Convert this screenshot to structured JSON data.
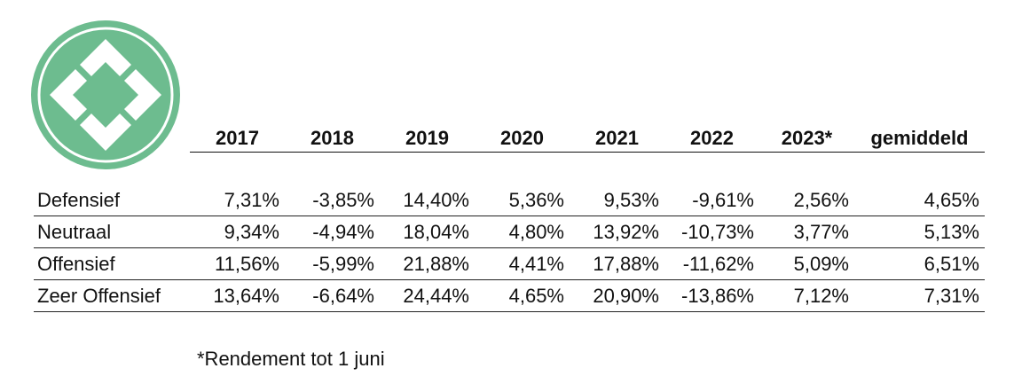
{
  "brand": {
    "logo_icon": "diamond-cross-logo-icon",
    "colors": {
      "logo_green": "#6dbc8f",
      "logo_ring": "#ffffff"
    }
  },
  "table": {
    "headers": [
      "2017",
      "2018",
      "2019",
      "2020",
      "2021",
      "2022",
      "2023*",
      "gemiddeld"
    ],
    "rows": [
      {
        "label": "Defensief",
        "values": [
          "7,31%",
          "-3,85%",
          "14,40%",
          "5,36%",
          "9,53%",
          "-9,61%",
          "2,56%",
          "4,65%"
        ]
      },
      {
        "label": "Neutraal",
        "values": [
          "9,34%",
          "-4,94%",
          "18,04%",
          "4,80%",
          "13,92%",
          "-10,73%",
          "3,77%",
          "5,13%"
        ]
      },
      {
        "label": "Offensief",
        "values": [
          "11,56%",
          "-5,99%",
          "21,88%",
          "4,41%",
          "17,88%",
          "-11,62%",
          "5,09%",
          "6,51%"
        ]
      },
      {
        "label": "Zeer Offensief",
        "values": [
          "13,64%",
          "-6,64%",
          "24,44%",
          "4,65%",
          "20,90%",
          "-13,86%",
          "7,12%",
          "7,31%"
        ]
      }
    ]
  },
  "footnote": "*Rendement tot 1 juni"
}
